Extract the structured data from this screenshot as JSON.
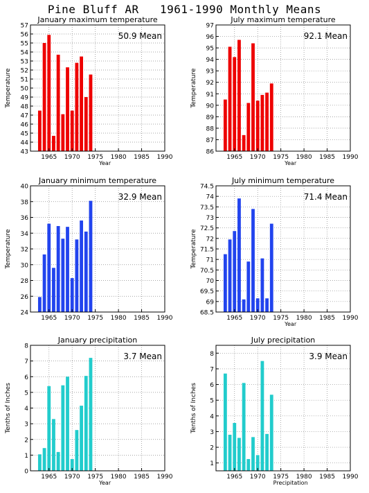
{
  "page": {
    "title": "Pine Bluff AR   1961-1990 Monthly Means"
  },
  "chart_data": [
    {
      "type": "bar",
      "title": "January maximum temperature",
      "xlabel": "Year",
      "ylabel": "Temperature",
      "mean_label": "50.9 Mean",
      "color": "#ee0000",
      "xlim": [
        1961,
        1990
      ],
      "ylim": [
        43,
        57
      ],
      "yticks": [
        "43",
        "44",
        "45",
        "46",
        "47",
        "48",
        "49",
        "50",
        "51",
        "52",
        "53",
        "54",
        "55",
        "56",
        "57"
      ],
      "xticks": [
        "1965",
        "1970",
        "1975",
        "1980",
        "1985",
        "1990"
      ],
      "grid": true,
      "x": [
        1963,
        1964,
        1965,
        1966,
        1967,
        1968,
        1969,
        1970,
        1971,
        1972,
        1973,
        1974
      ],
      "values": [
        47.5,
        55.0,
        55.9,
        44.7,
        53.7,
        47.1,
        52.3,
        47.5,
        52.8,
        53.5,
        49.0,
        51.5
      ]
    },
    {
      "type": "bar",
      "title": "July maximum temperature",
      "xlabel": "Year",
      "ylabel": "Temperature",
      "mean_label": "92.1 Mean",
      "color": "#ee0000",
      "xlim": [
        1961,
        1990
      ],
      "ylim": [
        86,
        97
      ],
      "yticks": [
        "86",
        "87",
        "88",
        "89",
        "90",
        "91",
        "92",
        "93",
        "94",
        "95",
        "96",
        "97"
      ],
      "xticks": [
        "1965",
        "1970",
        "1975",
        "1980",
        "1985",
        "1990"
      ],
      "grid": true,
      "x": [
        1963,
        1964,
        1965,
        1966,
        1967,
        1968,
        1969,
        1970,
        1971,
        1972,
        1973
      ],
      "values": [
        90.5,
        95.1,
        94.2,
        95.7,
        87.4,
        90.2,
        95.4,
        90.4,
        90.9,
        91.1,
        91.9
      ]
    },
    {
      "type": "bar",
      "title": "January minimum temperature",
      "xlabel": "",
      "ylabel": "Temperature",
      "mean_label": "32.9 Mean",
      "color": "#2244ee",
      "xlim": [
        1961,
        1990
      ],
      "ylim": [
        24,
        40
      ],
      "yticks": [
        "24",
        "26",
        "28",
        "30",
        "32",
        "34",
        "36",
        "38",
        "40"
      ],
      "xticks": [
        "1965",
        "1970",
        "1975",
        "1980",
        "1985",
        "1990"
      ],
      "grid": true,
      "x": [
        1963,
        1964,
        1965,
        1966,
        1967,
        1968,
        1969,
        1970,
        1971,
        1972,
        1973,
        1974
      ],
      "values": [
        25.9,
        31.3,
        35.2,
        29.6,
        34.9,
        33.3,
        34.8,
        28.3,
        33.2,
        35.6,
        34.2,
        38.1
      ]
    },
    {
      "type": "bar",
      "title": "July minimum temperature",
      "xlabel": "Year",
      "ylabel": "Temperature",
      "mean_label": "71.4 Mean",
      "color": "#2244ee",
      "xlim": [
        1961,
        1990
      ],
      "ylim": [
        68.5,
        74.5
      ],
      "yticks": [
        "68.5",
        "69",
        "69.5",
        "70",
        "70.5",
        "71",
        "71.5",
        "72",
        "72.5",
        "73",
        "73.5",
        "74",
        "74.5"
      ],
      "xticks": [
        "1965",
        "1970",
        "1975",
        "1980",
        "1985",
        "1990"
      ],
      "grid": true,
      "x": [
        1963,
        1964,
        1965,
        1966,
        1967,
        1968,
        1969,
        1970,
        1971,
        1972,
        1973
      ],
      "values": [
        71.25,
        71.95,
        72.35,
        73.9,
        69.1,
        70.9,
        73.4,
        69.15,
        71.05,
        69.15,
        72.7
      ]
    },
    {
      "type": "bar",
      "title": "January precipitation",
      "xlabel": "Year",
      "ylabel": "Tenths of Inches",
      "mean_label": "3.7 Mean",
      "color": "#22cccc",
      "xlim": [
        1961,
        1990
      ],
      "ylim": [
        0,
        8
      ],
      "yticks": [
        "0",
        "1",
        "2",
        "3",
        "4",
        "5",
        "6",
        "7",
        "8"
      ],
      "xticks": [
        "1965",
        "1970",
        "1975",
        "1980",
        "1985",
        "1990"
      ],
      "grid": true,
      "x": [
        1963,
        1964,
        1965,
        1966,
        1967,
        1968,
        1969,
        1970,
        1971,
        1972,
        1973,
        1974
      ],
      "values": [
        1.05,
        1.45,
        5.4,
        3.3,
        1.2,
        5.45,
        6.0,
        0.75,
        2.6,
        4.15,
        6.05,
        7.2
      ]
    },
    {
      "type": "bar",
      "title": "July precipitation",
      "xlabel": "Precipitation",
      "ylabel": "Tenths of Inches",
      "mean_label": "3.9 Mean",
      "color": "#22cccc",
      "xlim": [
        1961,
        1990
      ],
      "ylim": [
        0.5,
        8.5
      ],
      "yticks": [
        "1",
        "2",
        "3",
        "4",
        "5",
        "6",
        "7",
        "8"
      ],
      "ytick_values": [
        1,
        2,
        3,
        4,
        5,
        6,
        7,
        8
      ],
      "xticks": [
        "1965",
        "1970",
        "1975",
        "1980",
        "1985",
        "1990"
      ],
      "grid": true,
      "x": [
        1963,
        1964,
        1965,
        1966,
        1967,
        1968,
        1969,
        1970,
        1971,
        1972,
        1973
      ],
      "values": [
        6.7,
        2.8,
        3.55,
        2.6,
        6.1,
        1.25,
        2.65,
        1.5,
        7.5,
        2.85,
        5.35
      ]
    }
  ]
}
